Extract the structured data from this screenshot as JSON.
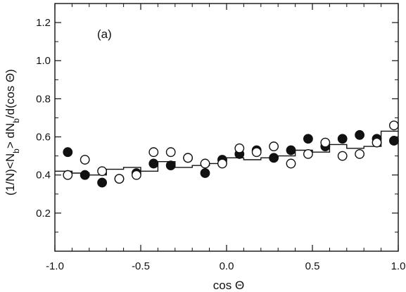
{
  "chart_data": {
    "type": "scatter",
    "title": "",
    "panel_label": "(a)",
    "xlabel": "cos Θ",
    "ylabel": "(1/N)<N_b> dN_b/d(cos Θ)",
    "ylabel_parts": [
      "(1/N)<N",
      "b",
      "> dN",
      "b",
      "/d(cos Θ)"
    ],
    "xlim": [
      -1.0,
      1.0
    ],
    "ylim": [
      0.0,
      1.3
    ],
    "x_ticks": [
      -1.0,
      -0.5,
      0.0,
      0.5,
      1.0
    ],
    "x_tick_labels": [
      "-1.0",
      "-0.5",
      "0.0",
      "0.5",
      "1.0"
    ],
    "y_ticks": [
      0.2,
      0.4,
      0.6,
      0.8,
      1.0,
      1.2
    ],
    "y_tick_labels": [
      "0.2",
      "0.4",
      "0.6",
      "0.8",
      "1.0",
      "1.2"
    ],
    "grid": false,
    "legend": "none",
    "series": [
      {
        "marker": "filled-circle",
        "x": [
          -0.925,
          -0.825,
          -0.725,
          -0.625,
          -0.525,
          -0.425,
          -0.325,
          -0.225,
          -0.125,
          -0.025,
          0.075,
          0.175,
          0.275,
          0.375,
          0.475,
          0.575,
          0.675,
          0.775,
          0.875,
          0.975
        ],
        "y": [
          0.52,
          0.4,
          0.36,
          0.38,
          0.41,
          0.46,
          0.45,
          0.49,
          0.41,
          0.48,
          0.51,
          0.53,
          0.49,
          0.53,
          0.59,
          0.55,
          0.59,
          0.61,
          0.59,
          0.58
        ],
        "err": [
          0.025,
          0.025,
          0.025,
          0.02,
          0.02,
          0.025,
          0.025,
          0.02,
          0.025,
          0.02,
          0.025,
          0.02,
          0.02,
          0.025,
          0.02,
          0.025,
          0.025,
          0.025,
          0.025,
          0.025
        ]
      },
      {
        "marker": "open-circle",
        "x": [
          -0.925,
          -0.825,
          -0.725,
          -0.625,
          -0.525,
          -0.425,
          -0.325,
          -0.225,
          -0.125,
          -0.025,
          0.075,
          0.175,
          0.275,
          0.375,
          0.475,
          0.575,
          0.675,
          0.775,
          0.875,
          0.975
        ],
        "y": [
          0.4,
          0.48,
          0.42,
          0.38,
          0.4,
          0.52,
          0.52,
          0.49,
          0.46,
          0.46,
          0.54,
          0.52,
          0.55,
          0.46,
          0.51,
          0.57,
          0.5,
          0.51,
          0.57,
          0.66
        ],
        "err": [
          0.025,
          0.025,
          0.02,
          0.02,
          0.02,
          0.025,
          0.025,
          0.02,
          0.025,
          0.02,
          0.025,
          0.02,
          0.025,
          0.025,
          0.025,
          0.025,
          0.025,
          0.025,
          0.025,
          0.025
        ]
      },
      {
        "marker": "step-line",
        "bin_edges": [
          -1.0,
          -0.9,
          -0.8,
          -0.7,
          -0.6,
          -0.5,
          -0.4,
          -0.3,
          -0.2,
          -0.1,
          0.0,
          0.1,
          0.2,
          0.3,
          0.4,
          0.5,
          0.6,
          0.7,
          0.8,
          0.9,
          1.0
        ],
        "values": [
          0.42,
          0.41,
          0.4,
          0.43,
          0.44,
          0.42,
          0.47,
          0.44,
          0.45,
          0.46,
          0.49,
          0.48,
          0.49,
          0.5,
          0.53,
          0.52,
          0.56,
          0.54,
          0.55,
          0.63
        ]
      }
    ]
  }
}
